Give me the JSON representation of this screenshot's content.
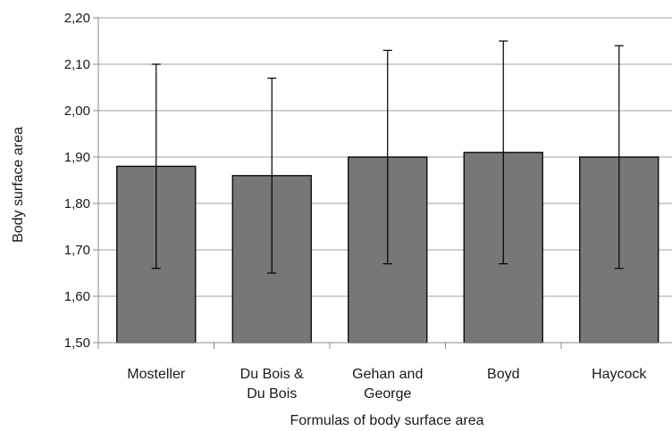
{
  "chart_data": {
    "type": "bar",
    "categories": [
      [
        "Mosteller"
      ],
      [
        "Du Bois &",
        "Du Bois"
      ],
      [
        "Gehan and",
        "George"
      ],
      [
        "Boyd"
      ],
      [
        "Haycock"
      ]
    ],
    "values": [
      1.88,
      1.86,
      1.9,
      1.91,
      1.9
    ],
    "error_low": [
      1.66,
      1.65,
      1.67,
      1.67,
      1.66
    ],
    "error_high": [
      2.1,
      2.07,
      2.13,
      2.15,
      2.14
    ],
    "ylim": [
      1.5,
      2.2
    ],
    "yticks": [
      "1,50",
      "1,60",
      "1,70",
      "1,80",
      "1,90",
      "2,00",
      "2,10",
      "2,20"
    ],
    "xlabel": "Formulas of body surface area",
    "ylabel": "Body surface area",
    "grid": true,
    "bar_color": "#777777",
    "bar_edge_color": "#000000",
    "grid_color": "#b3b3b3"
  }
}
